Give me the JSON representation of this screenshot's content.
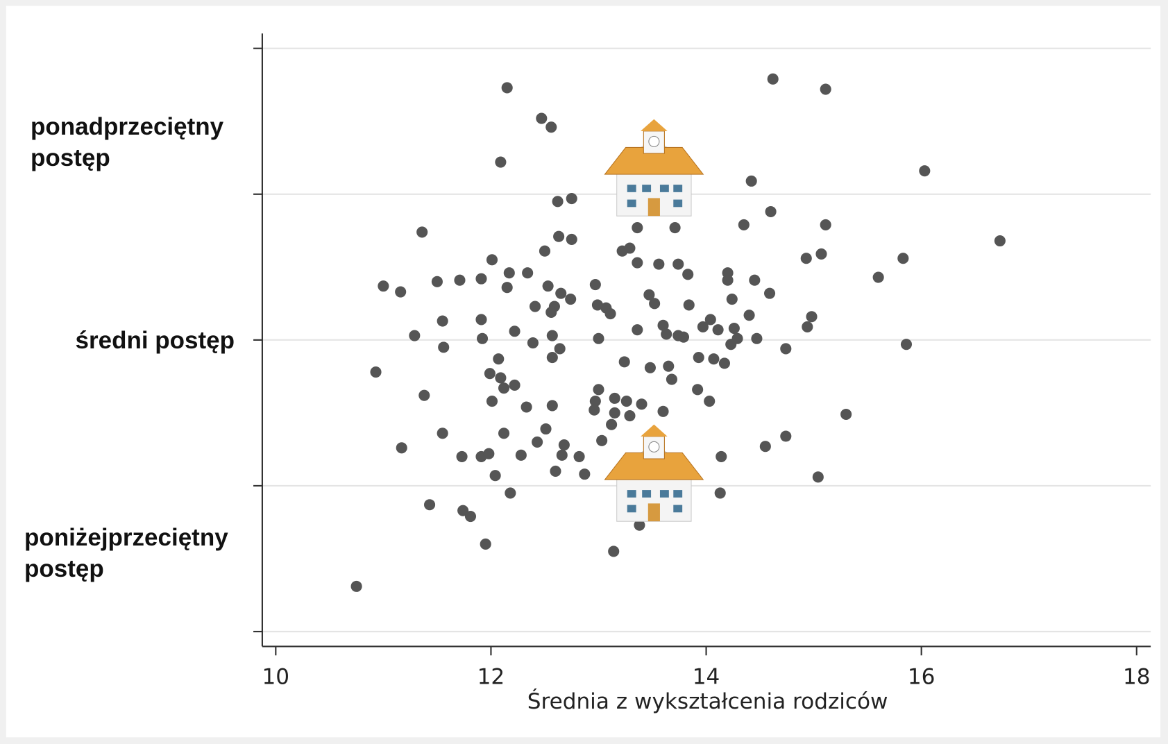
{
  "chart_data": {
    "type": "scatter",
    "x_label": "Średnia z wykształcenia rodziców",
    "annotations": [
      "ponadprzeciętny postęp",
      "średni postęp",
      "poniżejprzeciętny postęp"
    ],
    "xlim": [
      9.875,
      18.131
    ],
    "xticks": [
      10,
      12,
      14,
      16,
      18
    ],
    "ylim": [
      -2.102,
      2.102
    ],
    "yticks": [
      -2,
      -1,
      0,
      1,
      2
    ],
    "grid": true,
    "color": "#555555",
    "x": [
      12.15,
      14.62,
      15.11,
      12.47,
      12.56,
      12.09,
      14.42,
      16.03,
      12.62,
      12.75,
      14.6,
      11.36,
      14.35,
      15.11,
      16.73,
      12.63,
      12.75,
      13.36,
      13.71,
      12.5,
      13.22,
      13.29,
      12.01,
      14.93,
      15.07,
      15.83,
      13.36,
      13.56,
      13.74,
      12.17,
      12.34,
      13.83,
      14.2,
      15.6,
      11.0,
      11.16,
      11.5,
      11.71,
      11.91,
      12.15,
      12.53,
      12.97,
      14.2,
      14.45,
      12.65,
      12.74,
      13.47,
      14.59,
      12.41,
      12.59,
      12.99,
      13.07,
      13.52,
      13.84,
      14.24,
      12.56,
      13.11,
      14.4,
      14.98,
      11.55,
      11.91,
      14.04,
      11.29,
      12.22,
      13.36,
      13.6,
      13.97,
      14.11,
      14.26,
      14.94,
      11.92,
      12.57,
      13.0,
      13.63,
      13.74,
      13.79,
      14.29,
      14.47,
      11.56,
      12.39,
      12.64,
      14.23,
      14.74,
      15.86,
      12.07,
      12.57,
      13.24,
      13.93,
      14.07,
      14.17,
      10.93,
      11.99,
      13.48,
      13.65,
      12.09,
      13.68,
      12.22,
      12.12,
      13.0,
      13.92,
      11.38,
      12.01,
      13.15,
      13.26,
      12.97,
      14.03,
      12.33,
      12.57,
      12.96,
      13.15,
      13.29,
      13.4,
      13.6,
      15.3,
      13.12,
      11.55,
      12.12,
      12.51,
      14.74,
      11.17,
      12.43,
      12.68,
      14.55,
      11.73,
      11.91,
      11.98,
      12.28,
      12.66,
      12.82,
      14.14,
      12.04,
      12.6,
      12.87,
      15.04,
      12.18,
      14.13,
      11.43,
      11.74,
      11.81,
      11.95,
      13.14,
      10.75,
      13.38,
      13.03
    ],
    "values": [
      1.73,
      1.79,
      1.72,
      1.52,
      1.46,
      1.22,
      1.09,
      1.16,
      0.95,
      0.97,
      0.88,
      0.74,
      0.79,
      0.79,
      0.68,
      0.71,
      0.69,
      0.77,
      0.77,
      0.61,
      0.61,
      0.63,
      0.55,
      0.56,
      0.59,
      0.56,
      0.53,
      0.52,
      0.52,
      0.46,
      0.46,
      0.45,
      0.46,
      0.43,
      0.37,
      0.33,
      0.4,
      0.41,
      0.42,
      0.36,
      0.37,
      0.38,
      0.41,
      0.41,
      0.32,
      0.28,
      0.31,
      0.32,
      0.23,
      0.23,
      0.24,
      0.22,
      0.25,
      0.24,
      0.28,
      0.19,
      0.18,
      0.17,
      0.16,
      0.13,
      0.14,
      0.14,
      0.03,
      0.06,
      0.07,
      0.1,
      0.09,
      0.07,
      0.08,
      0.09,
      0.01,
      0.03,
      0.01,
      0.04,
      0.03,
      0.02,
      0.01,
      0.01,
      -0.05,
      -0.02,
      -0.06,
      -0.03,
      -0.06,
      -0.03,
      -0.13,
      -0.12,
      -0.15,
      -0.12,
      -0.13,
      -0.16,
      -0.22,
      -0.23,
      -0.19,
      -0.18,
      -0.26,
      -0.27,
      -0.31,
      -0.33,
      -0.34,
      -0.34,
      -0.38,
      -0.42,
      -0.4,
      -0.42,
      -0.42,
      -0.42,
      -0.46,
      -0.45,
      -0.48,
      -0.5,
      -0.52,
      -0.44,
      -0.49,
      -0.51,
      -0.58,
      -0.64,
      -0.64,
      -0.61,
      -0.66,
      -0.74,
      -0.7,
      -0.72,
      -0.73,
      -0.8,
      -0.8,
      -0.78,
      -0.79,
      -0.79,
      -0.8,
      -0.8,
      -0.93,
      -0.9,
      -0.92,
      -0.94,
      -1.05,
      -1.05,
      -1.13,
      -1.17,
      -1.21,
      -1.4,
      -1.45,
      -1.69,
      -1.27,
      -0.69
    ]
  }
}
